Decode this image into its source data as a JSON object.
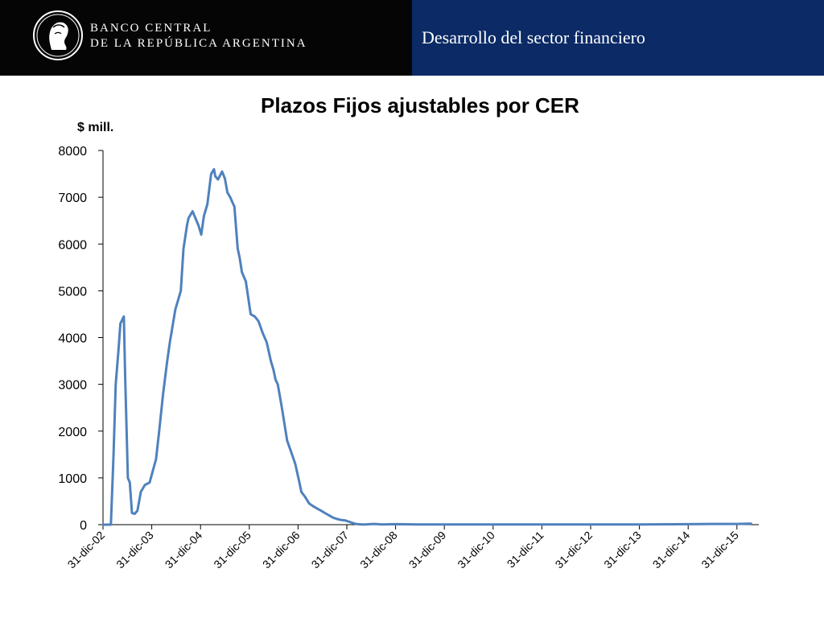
{
  "header": {
    "bank_name_line1": "BANCO CENTRAL",
    "bank_name_line2": "DE LA REPÚBLICA ARGENTINA",
    "section_title": "Desarrollo del sector financiero",
    "colors": {
      "left": "#050505",
      "right": "#0b2a66"
    }
  },
  "chart_data": {
    "type": "line",
    "title": "Plazos Fijos ajustables por CER",
    "ylabel": "$ mill.",
    "xlabel": "",
    "ylim": [
      0,
      8000
    ],
    "yticks": [
      0,
      1000,
      2000,
      3000,
      4000,
      5000,
      6000,
      7000,
      8000
    ],
    "xlim": [
      "2002-12-31",
      "2016-06-30"
    ],
    "xticks": [
      "31-dic-02",
      "31-dic-03",
      "31-dic-04",
      "31-dic-05",
      "31-dic-06",
      "31-dic-07",
      "31-dic-08",
      "31-dic-09",
      "31-dic-10",
      "31-dic-11",
      "31-dic-12",
      "31-dic-13",
      "31-dic-14",
      "31-dic-15"
    ],
    "grid": false,
    "legend": "none",
    "series_color": "#4f81bd",
    "series": [
      {
        "x": [
          "2002-12-31",
          "2003-02-28",
          "2003-03-20",
          "2003-04-05",
          "2003-04-25",
          "2003-05-10",
          "2003-06-05",
          "2003-06-15",
          "2003-07-05",
          "2003-07-20",
          "2003-08-05",
          "2003-08-25",
          "2003-09-15",
          "2003-10-10",
          "2003-11-10",
          "2003-12-15",
          "2004-02-01",
          "2004-02-25",
          "2004-03-25",
          "2004-04-25",
          "2004-05-15",
          "2004-06-25",
          "2004-08-05",
          "2004-08-25",
          "2004-09-20",
          "2004-10-01",
          "2004-11-01",
          "2004-12-15",
          "2005-01-05",
          "2005-01-25",
          "2005-02-20",
          "2005-03-20",
          "2005-04-10",
          "2005-04-20",
          "2005-05-10",
          "2005-06-10",
          "2005-07-01",
          "2005-07-20",
          "2005-08-10",
          "2005-08-25",
          "2005-09-10",
          "2005-10-05",
          "2005-10-20",
          "2005-11-05",
          "2005-12-05",
          "2006-01-10",
          "2006-02-10",
          "2006-03-10",
          "2006-04-10",
          "2006-05-10",
          "2006-06-10",
          "2006-07-01",
          "2006-07-15",
          "2006-08-01",
          "2006-09-01",
          "2006-10-10",
          "2006-11-10",
          "2006-12-10",
          "2007-01-10",
          "2007-01-25",
          "2007-02-20",
          "2007-03-25",
          "2007-04-20",
          "2007-05-20",
          "2007-06-20",
          "2007-07-20",
          "2007-08-20",
          "2007-09-20",
          "2007-10-20",
          "2007-11-20",
          "2007-12-20",
          "2008-01-20",
          "2008-02-20",
          "2008-03-20",
          "2008-04-20",
          "2008-05-20",
          "2008-06-20",
          "2008-07-20",
          "2008-08-20",
          "2008-09-20",
          "2008-12-31",
          "2009-06-30",
          "2009-12-31",
          "2010-12-31",
          "2011-12-31",
          "2012-12-31",
          "2013-12-31",
          "2014-12-31",
          "2015-06-30",
          "2015-12-31",
          "2016-04-15"
        ],
        "y": [
          0,
          0,
          1500,
          3000,
          3700,
          4300,
          4450,
          3200,
          1000,
          900,
          250,
          230,
          300,
          700,
          850,
          900,
          1400,
          2000,
          2800,
          3500,
          3900,
          4600,
          5000,
          5900,
          6400,
          6550,
          6700,
          6400,
          6200,
          6600,
          6850,
          7500,
          7600,
          7450,
          7380,
          7550,
          7400,
          7100,
          7000,
          6900,
          6800,
          5900,
          5700,
          5400,
          5200,
          4500,
          4450,
          4350,
          4100,
          3900,
          3500,
          3300,
          3100,
          3000,
          2500,
          1800,
          1550,
          1300,
          900,
          700,
          600,
          450,
          400,
          350,
          300,
          250,
          200,
          150,
          120,
          100,
          90,
          60,
          30,
          10,
          5,
          5,
          10,
          15,
          10,
          5,
          10,
          5,
          5,
          5,
          5,
          5,
          5,
          10,
          15,
          15,
          20
        ]
      }
    ]
  }
}
